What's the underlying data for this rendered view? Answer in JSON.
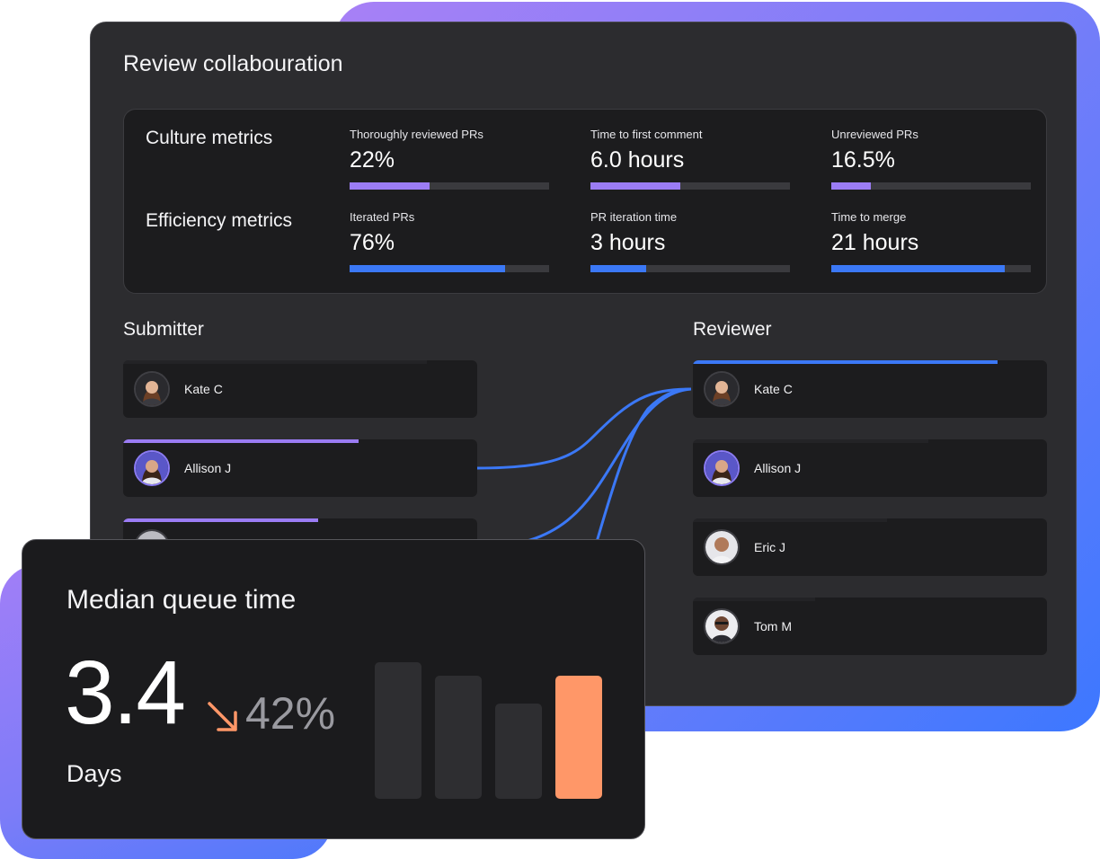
{
  "review": {
    "title": "Review collabouration",
    "culture_label": "Culture metrics",
    "efficiency_label": "Efficiency metrics",
    "culture_metrics": [
      {
        "label": "Thoroughly reviewed PRs",
        "value": "22%",
        "progress": 0.4,
        "color": "#9b7cf4"
      },
      {
        "label": "Time to first comment",
        "value": "6.0 hours",
        "progress": 0.45,
        "color": "#9b7cf4"
      },
      {
        "label": "Unreviewed PRs",
        "value": "16.5%",
        "progress": 0.2,
        "color": "#9b7cf4"
      }
    ],
    "efficiency_metrics": [
      {
        "label": "Iterated PRs",
        "value": "76%",
        "progress": 0.78,
        "color": "#3b78f6"
      },
      {
        "label": "PR iteration time",
        "value": "3 hours",
        "progress": 0.28,
        "color": "#3b78f6"
      },
      {
        "label": "Time to merge",
        "value": "21 hours",
        "progress": 0.87,
        "color": "#3b78f6"
      }
    ],
    "submitter": {
      "title": "Submitter",
      "people": [
        {
          "name": "Kate C",
          "bar": 0,
          "color": "#9b7cf4"
        },
        {
          "name": "Allison J",
          "bar": 0.665,
          "color": "#9b7cf4"
        },
        {
          "name": "",
          "bar": 0.55,
          "color": "#9b7cf4"
        }
      ]
    },
    "reviewer": {
      "title": "Reviewer",
      "people": [
        {
          "name": "Kate C",
          "bar": 0.86,
          "color": "#3b78f6"
        },
        {
          "name": "Allison J",
          "bar": 0,
          "color": "#3b78f6"
        },
        {
          "name": "Eric J",
          "bar": 0,
          "color": "#3b78f6"
        },
        {
          "name": "Tom M",
          "bar": 0,
          "color": "#3b78f6"
        }
      ]
    }
  },
  "queue": {
    "title": "Median queue time",
    "value": "3.4",
    "change": "42%",
    "unit": "Days",
    "bars": [
      {
        "value": 1.0,
        "color": "#2e2e31"
      },
      {
        "value": 0.9,
        "color": "#2e2e31"
      },
      {
        "value": 0.7,
        "color": "#2e2e31"
      },
      {
        "value": 0.9,
        "color": "#ff9768"
      }
    ],
    "accent_color": "#ff9768"
  }
}
